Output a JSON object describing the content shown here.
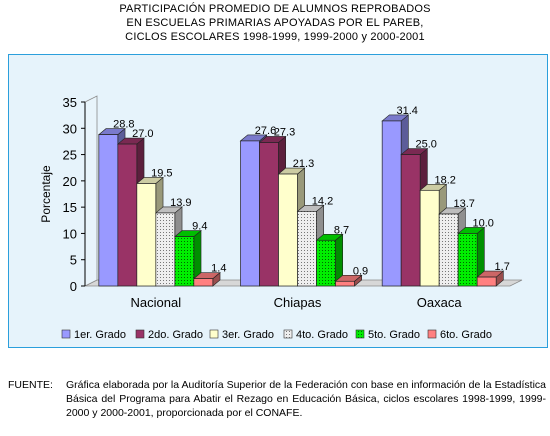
{
  "title_lines": [
    "PARTICIPACIÓN PROMEDIO DE ALUMNOS REPROBADOS",
    "EN ESCUELAS PRIMARIAS APOYADAS POR EL PAREB,",
    "CICLOS  ESCOLARES 1998-1999, 1999-2000 y 2000-2001"
  ],
  "chart_data": {
    "type": "bar",
    "title": "PARTICIPACIÓN PROMEDIO DE ALUMNOS REPROBADOS EN ESCUELAS PRIMARIAS APOYADAS POR EL PAREB, CICLOS  ESCOLARES 1998-1999, 1999-2000 y 2000-2001",
    "xlabel": "",
    "ylabel": "Porcentaje",
    "ylim": [
      0,
      35
    ],
    "yticks": [
      "0",
      "5",
      "10",
      "15",
      "20",
      "25",
      "30",
      "35"
    ],
    "categories": [
      "Nacional",
      "Chiapas",
      "Oaxaca"
    ],
    "grid": false,
    "legend_position": "bottom",
    "three_d": true,
    "series": [
      {
        "name": "1er. Grado",
        "values": [
          28.8,
          27.6,
          31.4
        ],
        "labels": [
          "28.8",
          "27.6",
          "31.4"
        ],
        "color": "#9999ff",
        "pattern": "solid"
      },
      {
        "name": "2do. Grado",
        "values": [
          27.0,
          27.3,
          25.0
        ],
        "labels": [
          "27.0",
          "27.3",
          "25.0"
        ],
        "color": "#993366",
        "pattern": "solid"
      },
      {
        "name": "3er. Grado",
        "values": [
          19.5,
          21.3,
          18.2
        ],
        "labels": [
          "19.5",
          "21.3",
          "18.2"
        ],
        "color": "#ffffcc",
        "pattern": "solid"
      },
      {
        "name": "4to. Grado",
        "values": [
          13.9,
          14.2,
          13.7
        ],
        "labels": [
          "13.9",
          "14.2",
          "13.7"
        ],
        "color": "#eeeeee",
        "pattern": "dots"
      },
      {
        "name": "5to. Grado",
        "values": [
          9.4,
          8.7,
          10.0
        ],
        "labels": [
          "9.4",
          "8.7",
          "10.0"
        ],
        "color": "#00ee00",
        "pattern": "dots"
      },
      {
        "name": "6to. Grado",
        "values": [
          1.4,
          0.9,
          1.7
        ],
        "labels": [
          "1.4",
          "0.9",
          "1.7"
        ],
        "color": "#ff8080",
        "pattern": "solid"
      }
    ]
  },
  "source": {
    "label": "FUENTE:",
    "text": "Gráfica elaborada por la Auditoría Superior de la Federación con base en información de la Estadística Básica del Programa para Abatir el Rezago en Educación Básica, ciclos escolares 1998-1999, 1999-2000 y 2000-2001, proporcionada por el CONAFE."
  }
}
